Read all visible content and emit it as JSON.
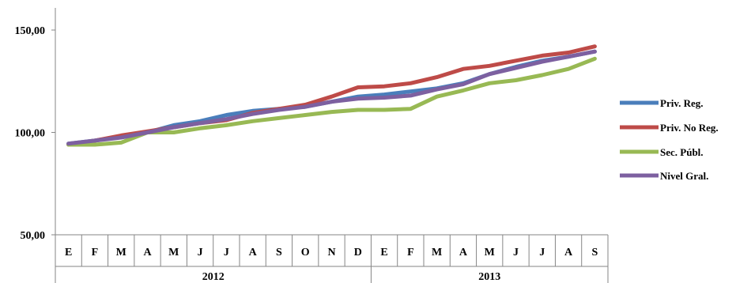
{
  "chart_data": {
    "type": "line",
    "title": "",
    "xlabel": "",
    "ylabel": "",
    "ylim": [
      50,
      150
    ],
    "y_ticks": [
      "50,00",
      "100,00",
      "150,00"
    ],
    "x": [
      "E",
      "F",
      "M",
      "A",
      "M",
      "J",
      "J",
      "A",
      "S",
      "O",
      "N",
      "D",
      "E",
      "F",
      "M",
      "A",
      "M",
      "J",
      "J",
      "A",
      "S"
    ],
    "groups": [
      {
        "label": "2012",
        "count": 12
      },
      {
        "label": "2013",
        "count": 9
      }
    ],
    "grid": false,
    "legend_position": "right",
    "series": [
      {
        "name": "Priv. Reg.",
        "color": "#4a7ebb",
        "values": [
          94.5,
          96.0,
          98.0,
          100.0,
          103.5,
          105.5,
          108.5,
          110.5,
          111.5,
          112.5,
          115.0,
          117.5,
          118.5,
          120.0,
          121.5,
          124.0,
          128.5,
          132.0,
          135.0,
          137.0,
          139.5
        ]
      },
      {
        "name": "Priv. No Reg.",
        "color": "#be4b48",
        "values": [
          94.0,
          96.0,
          98.5,
          100.5,
          102.5,
          104.5,
          106.0,
          109.5,
          111.5,
          113.5,
          117.5,
          122.0,
          122.5,
          124.0,
          127.0,
          131.0,
          132.5,
          135.0,
          137.5,
          139.0,
          142.0
        ]
      },
      {
        "name": "Sec. Públ.",
        "color": "#98b954",
        "values": [
          94.0,
          94.0,
          95.0,
          100.0,
          100.0,
          102.0,
          103.5,
          105.5,
          107.0,
          108.5,
          110.0,
          111.0,
          111.0,
          111.5,
          117.5,
          120.5,
          124.0,
          125.5,
          128.0,
          131.0,
          136.0
        ]
      },
      {
        "name": "Nivel Gral.",
        "color": "#7d60a0",
        "values": [
          94.5,
          96.0,
          97.5,
          100.0,
          102.5,
          104.5,
          106.5,
          109.0,
          111.0,
          112.5,
          115.0,
          116.5,
          117.0,
          118.0,
          121.0,
          123.5,
          128.5,
          131.5,
          134.5,
          137.0,
          139.5
        ]
      }
    ]
  }
}
